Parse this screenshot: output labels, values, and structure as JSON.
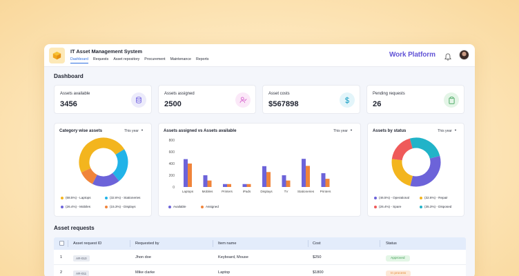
{
  "app": {
    "title": "IT Asset Management System",
    "brand": "Work Platform"
  },
  "nav": [
    "Dashboard",
    "Requests",
    "Asset repository",
    "Procurement",
    "Maintenance",
    "Reports"
  ],
  "page": {
    "title": "Dashboard"
  },
  "stats": [
    {
      "label": "Assets available",
      "value": "3456",
      "icon": "database-icon",
      "color": "#6a5ae0"
    },
    {
      "label": "Assets assigned",
      "value": "2500",
      "icon": "user-check-icon",
      "color": "#d257c9"
    },
    {
      "label": "Asset costs",
      "value": "$567898",
      "icon": "dollar-icon",
      "color": "#2aa6c8"
    },
    {
      "label": "Pending requests",
      "value": "26",
      "icon": "clipboard-icon",
      "color": "#3fa35a"
    }
  ],
  "category_card": {
    "title": "Category wise assets",
    "filter": "This year",
    "legend": [
      "(68.5%) - Laptops",
      "(32.6%) - Stationeries",
      "(26.4%) - Mobiles",
      "(15.3%) - Displays"
    ]
  },
  "bar_card": {
    "title": "Assets assigned vs Assets available",
    "filter": "This year"
  },
  "status_card": {
    "title": "Assets by status",
    "filter": "This year",
    "legend": [
      "(46.5%) - Operational",
      "(32.6%) - Repair",
      "(26.4%) - Spare",
      "(35.3%) - Disposed"
    ]
  },
  "chart_data": [
    {
      "type": "pie",
      "title": "Category wise assets",
      "labels": [
        "Laptops",
        "Stationeries",
        "Mobiles",
        "Displays"
      ],
      "values": [
        68.5,
        32.6,
        26.4,
        15.3
      ],
      "colors": [
        "#f3b51e",
        "#21b3e8",
        "#6c63d9",
        "#f0843a"
      ],
      "donut": true
    },
    {
      "type": "bar",
      "title": "Assets assigned vs Assets available",
      "categories": [
        "Laptops",
        "Mobiles",
        "Printers",
        "iPads",
        "Displays",
        "TV",
        "Stationeries",
        "Printers"
      ],
      "series": [
        {
          "name": "Available",
          "values": [
            475,
            200,
            50,
            50,
            355,
            200,
            480,
            235
          ],
          "color": "#6c63d9"
        },
        {
          "name": "Assigned",
          "values": [
            400,
            110,
            50,
            50,
            255,
            110,
            360,
            140
          ],
          "color": "#f0843a"
        }
      ],
      "yticks": [
        "0",
        "200",
        "400",
        "600",
        "800"
      ],
      "ylim": [
        0,
        800
      ],
      "grid": false,
      "legend": "bottom-left"
    },
    {
      "type": "pie",
      "title": "Assets by status",
      "labels": [
        "Operational",
        "Repair",
        "Spare",
        "Disposed"
      ],
      "values": [
        46.5,
        32.6,
        26.4,
        35.3
      ],
      "colors": [
        "#6c63d9",
        "#f3b51e",
        "#ef5a5a",
        "#21b3c8"
      ],
      "donut": true
    }
  ],
  "requests": {
    "title": "Asset requests",
    "columns": [
      "Asset request ID",
      "Requested by",
      "Item name",
      "Cost",
      "Status"
    ],
    "rows": [
      {
        "no": "1",
        "id": "AR-010",
        "by": "Jhon doe",
        "item": "Keyboard, Mouse",
        "cost": "$250",
        "status": "Approved",
        "status_color": "green"
      },
      {
        "no": "2",
        "id": "AR-011",
        "by": "Mike clarke",
        "item": "Laptop",
        "cost": "$1800",
        "status": "In process",
        "status_color": "orange"
      }
    ]
  }
}
